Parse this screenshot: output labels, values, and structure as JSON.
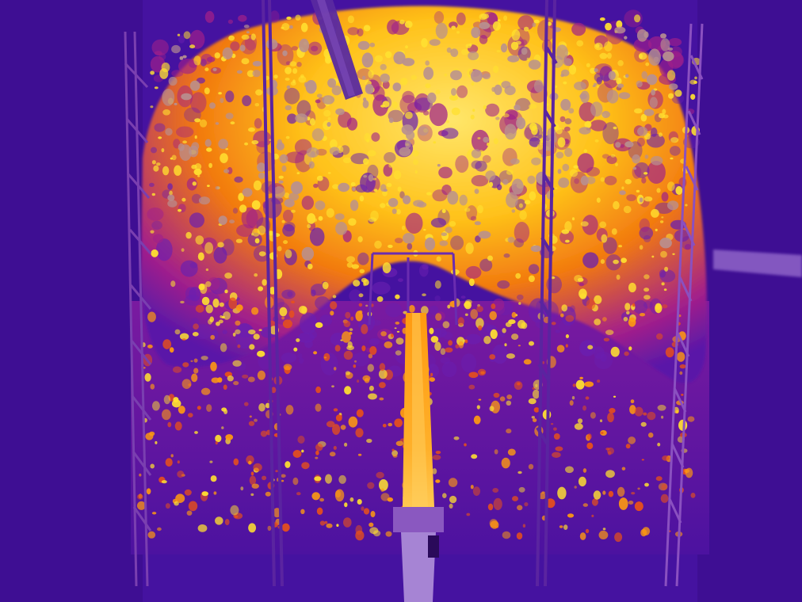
{
  "image": {
    "palette": {
      "background_deep": "#2c0866",
      "background": "#4a14a0",
      "cool": "#6a1fb0",
      "mid": "#a0208a",
      "warm": "#e8501a",
      "hot": "#ff9a10",
      "hotter": "#ffe030",
      "saturated": "#b89090"
    }
  }
}
